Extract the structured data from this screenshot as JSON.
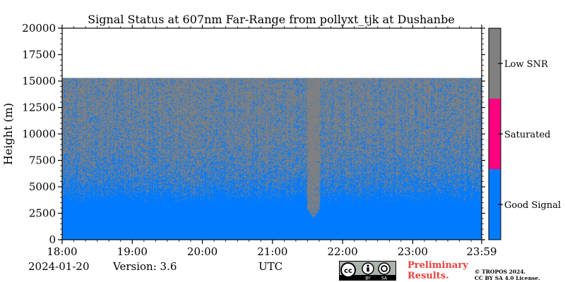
{
  "chart_data": {
    "type": "heatmap",
    "title": "Signal Status at 607nm Far-Range from pollyxt_tjk at Dushanbe",
    "xlabel": "UTC",
    "ylabel": "Height (m)",
    "xlim": [
      "18:00",
      "23:59"
    ],
    "ylim": [
      0,
      20000
    ],
    "x_ticks": [
      "18:00",
      "19:00",
      "20:00",
      "21:00",
      "22:00",
      "23:00",
      "23:59"
    ],
    "y_ticks": [
      0,
      2500,
      5000,
      7500,
      10000,
      12500,
      15000,
      17500,
      20000
    ],
    "data_top_height_m": 15300,
    "colorbar": {
      "categories": [
        "Good Signal",
        "Saturated",
        "Low SNR"
      ],
      "colors": [
        "#007bff",
        "#ff0080",
        "#808080"
      ]
    },
    "regions": [
      {
        "status": "Good Signal",
        "description_height_m": [
          0,
          3500
        ],
        "note": ""
      },
      {
        "status": "Low SNR",
        "description_height_m": [
          3500,
          15300
        ],
        "note": ""
      }
    ],
    "dip": {
      "time": "21:35",
      "min_height_m": 2100
    }
  },
  "footer": {
    "date": "2024-01-20",
    "version": "Version: 3.6",
    "utc": "UTC",
    "preliminary_line1": "Preliminary",
    "preliminary_line2": "Results.",
    "copyright_line1": "© TROPOS 2024.",
    "copyright_line2": "CC BY SA 4.0 License.",
    "badge_cc": "cc",
    "badge_by": "BY",
    "badge_sa": "SA"
  }
}
